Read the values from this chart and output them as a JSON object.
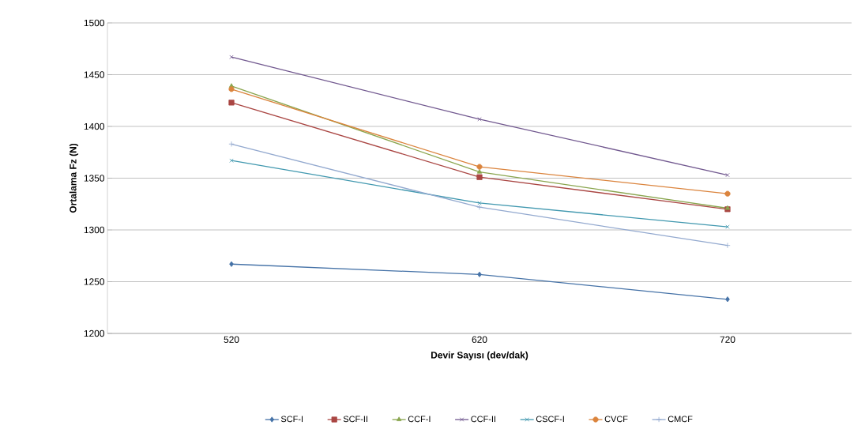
{
  "chart_data": {
    "type": "line",
    "xlabel": "Devir Sayısı (dev/dak)",
    "ylabel": "Ortalama Fz (N)",
    "categories": [
      "520",
      "620",
      "720"
    ],
    "ylim": [
      1200,
      1500
    ],
    "yticks": [
      1200,
      1250,
      1300,
      1350,
      1400,
      1450,
      1500
    ],
    "grid": "y",
    "legend": "bottom",
    "line_style": "solid",
    "series": [
      {
        "name": "SCF-I",
        "color": "#4572a7",
        "marker": "diamond",
        "values": [
          1267,
          1257,
          1233
        ]
      },
      {
        "name": "SCF-II",
        "color": "#aa4643",
        "marker": "square",
        "values": [
          1423,
          1351,
          1320
        ]
      },
      {
        "name": "CCF-I",
        "color": "#89a54e",
        "marker": "triangle",
        "values": [
          1439,
          1356,
          1321
        ]
      },
      {
        "name": "CCF-II",
        "color": "#71588f",
        "marker": "cross",
        "values": [
          1467,
          1407,
          1353
        ]
      },
      {
        "name": "CSCF-I",
        "color": "#4198af",
        "marker": "cross",
        "values": [
          1367,
          1326,
          1303
        ]
      },
      {
        "name": "CVCF",
        "color": "#db843d",
        "marker": "circle",
        "values": [
          1436,
          1361,
          1335
        ]
      },
      {
        "name": "CMCF",
        "color": "#93a9cf",
        "marker": "plus",
        "values": [
          1383,
          1322,
          1285
        ]
      }
    ]
  }
}
